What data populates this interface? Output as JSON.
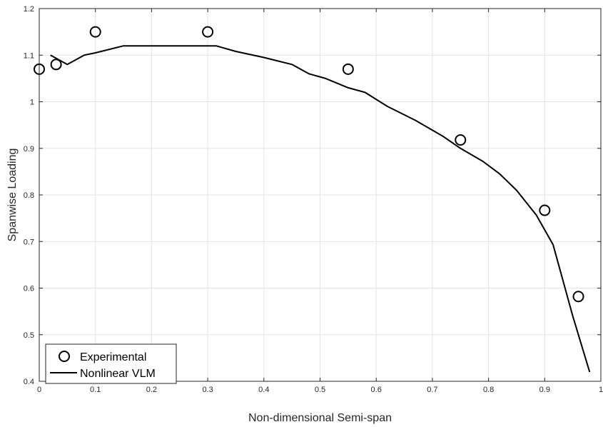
{
  "chart_data": {
    "type": "line",
    "title": "",
    "xlabel": "Non-dimensional Semi-span",
    "ylabel": "Spanwise Loading",
    "xlim": [
      0,
      1
    ],
    "ylim": [
      0.4,
      1.2
    ],
    "xticks": [
      0,
      0.1,
      0.2,
      0.3,
      0.4,
      0.5,
      0.6,
      0.7,
      0.8,
      0.9,
      1
    ],
    "xtick_labels": [
      "0",
      "0.1",
      "0.2",
      "0.3",
      "0.4",
      "0.5",
      "0.6",
      "0.7",
      "0.8",
      "0.9",
      "1"
    ],
    "yticks": [
      0.4,
      0.5,
      0.6,
      0.7,
      0.8,
      0.9,
      1.0,
      1.1,
      1.2
    ],
    "ytick_labels": [
      "0.4",
      "0.5",
      "0.6",
      "0.7",
      "0.8",
      "0.9",
      "1",
      "1.1",
      "1.2"
    ],
    "grid": true,
    "legend_position": "bottom-left",
    "series": [
      {
        "name": "Experimental",
        "kind": "scatter",
        "marker": "open-circle",
        "color": "#000000",
        "x": [
          0.0,
          0.03,
          0.1,
          0.3,
          0.55,
          0.75,
          0.9,
          0.96
        ],
        "y": [
          1.07,
          1.08,
          1.15,
          1.15,
          1.07,
          0.918,
          0.767,
          0.582
        ]
      },
      {
        "name": "Nonlinear VLM",
        "kind": "line",
        "color": "#000000",
        "x": [
          0.02,
          0.035,
          0.05,
          0.065,
          0.08,
          0.1,
          0.15,
          0.2,
          0.25,
          0.3,
          0.315,
          0.35,
          0.4,
          0.45,
          0.48,
          0.51,
          0.55,
          0.58,
          0.62,
          0.67,
          0.72,
          0.75,
          0.79,
          0.82,
          0.85,
          0.885,
          0.915,
          0.95,
          0.98
        ],
        "y": [
          1.1,
          1.09,
          1.08,
          1.09,
          1.1,
          1.105,
          1.12,
          1.12,
          1.12,
          1.12,
          1.12,
          1.108,
          1.095,
          1.08,
          1.06,
          1.05,
          1.03,
          1.02,
          0.99,
          0.96,
          0.925,
          0.9,
          0.872,
          0.845,
          0.81,
          0.757,
          0.693,
          0.54,
          0.42
        ]
      }
    ]
  }
}
